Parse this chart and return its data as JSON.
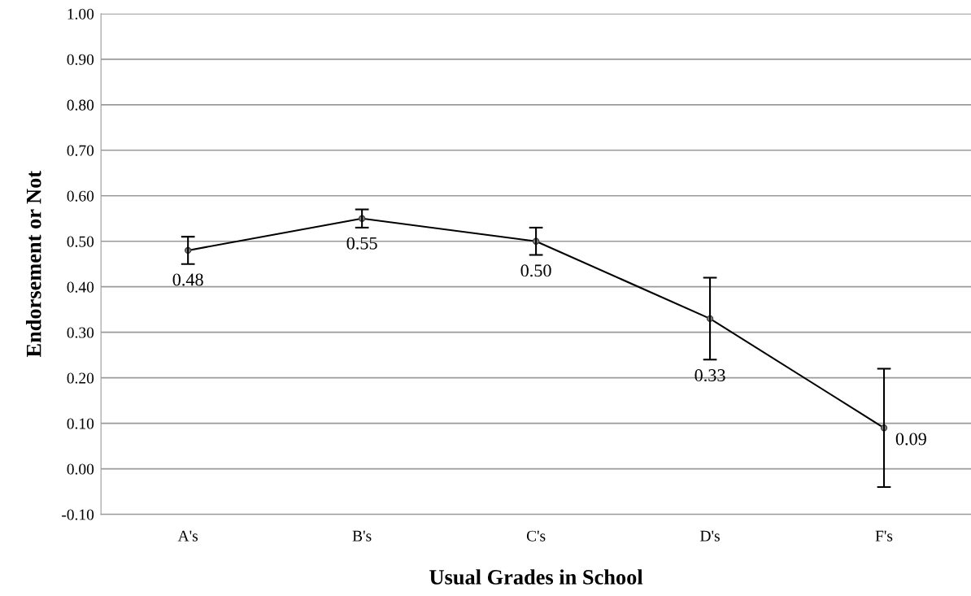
{
  "chart_data": {
    "type": "line",
    "xlabel": "Usual Grades in School",
    "ylabel": "Endorsement or Not",
    "categories": [
      "A's",
      "B's",
      "C's",
      "D's",
      "F's"
    ],
    "series": [
      {
        "color": "#000000",
        "values": [
          0.48,
          0.55,
          0.5,
          0.33,
          0.09
        ],
        "errors": [
          [
            0.45,
            0.51
          ],
          [
            0.53,
            0.57
          ],
          [
            0.47,
            0.53
          ],
          [
            0.24,
            0.42
          ],
          [
            -0.04,
            0.22
          ]
        ],
        "value_labels": [
          "0.48",
          "0.55",
          "0.50",
          "0.33",
          "0.09"
        ]
      }
    ],
    "ylim": [
      -0.1,
      1.0
    ],
    "yticks": [
      {
        "value": -0.1,
        "label": "-0.10"
      },
      {
        "value": 0,
        "label": "0.00"
      },
      {
        "value": 0.1,
        "label": "0.10"
      },
      {
        "value": 0.2,
        "label": "0.20"
      },
      {
        "value": 0.3,
        "label": "0.30"
      },
      {
        "value": 0.4,
        "label": "0.40"
      },
      {
        "value": 0.5,
        "label": "0.50"
      },
      {
        "value": 0.6,
        "label": "0.60"
      },
      {
        "value": 0.7,
        "label": "0.70"
      },
      {
        "value": 0.8,
        "label": "0.80"
      },
      {
        "value": 0.9,
        "label": "0.90"
      },
      {
        "value": 1.0,
        "label": "1.00"
      }
    ],
    "grid": "y",
    "marker": "circle",
    "line_style": "solid",
    "legend": false
  }
}
